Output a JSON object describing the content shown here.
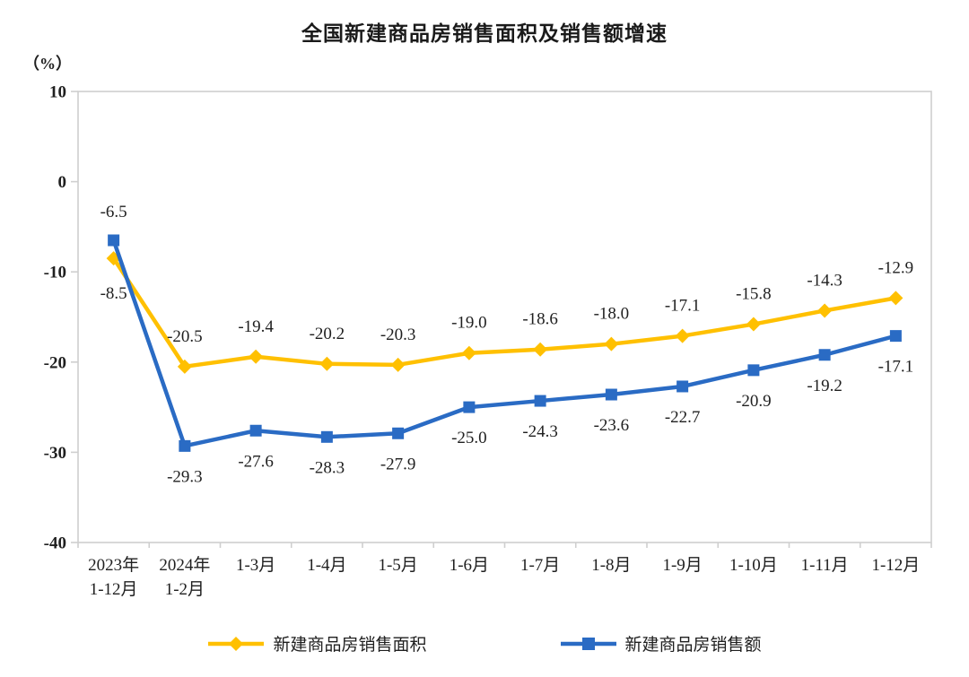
{
  "page": {
    "title": "全国新建商品房销售面积及销售额增速",
    "y_axis_unit": "（%）"
  },
  "chart_data": {
    "type": "line",
    "title": "全国新建商品房销售面积及销售额增速",
    "ylabel": "（%）",
    "ylim": [
      -40,
      10
    ],
    "y_ticks": [
      10,
      0,
      -10,
      -20,
      -30,
      -40
    ],
    "grid": false,
    "legend_position": "bottom",
    "axis_color": "#cfcfcf",
    "text_color": "#1f1f1f",
    "categories": [
      "2023年\n1-12月",
      "2024年\n1-2月",
      "1-3月",
      "1-4月",
      "1-5月",
      "1-6月",
      "1-7月",
      "1-8月",
      "1-9月",
      "1-10月",
      "1-11月",
      "1-12月"
    ],
    "series": [
      {
        "name": "新建商品房销售面积",
        "marker": "diamond",
        "color": "#FFC000",
        "values": [
          -8.5,
          -20.5,
          -19.4,
          -20.2,
          -20.3,
          -19.0,
          -18.6,
          -18.0,
          -17.1,
          -15.8,
          -14.3,
          -12.9
        ],
        "labels": [
          "-8.5",
          "-20.5",
          "-19.4",
          "-20.2",
          "-20.3",
          "-19.0",
          "-18.6",
          "-18.0",
          "-17.1",
          "-15.8",
          "-14.3",
          "-12.9"
        ]
      },
      {
        "name": "新建商品房销售额",
        "marker": "square",
        "color": "#2A6BC4",
        "values": [
          -6.5,
          -29.3,
          -27.6,
          -28.3,
          -27.9,
          -25.0,
          -24.3,
          -23.6,
          -22.7,
          -20.9,
          -19.2,
          -17.1
        ],
        "labels": [
          "-6.5",
          "-29.3",
          "-27.6",
          "-28.3",
          "-27.9",
          "-25.0",
          "-24.3",
          "-23.6",
          "-22.7",
          "-20.9",
          "-19.2",
          "-17.1"
        ]
      }
    ]
  }
}
